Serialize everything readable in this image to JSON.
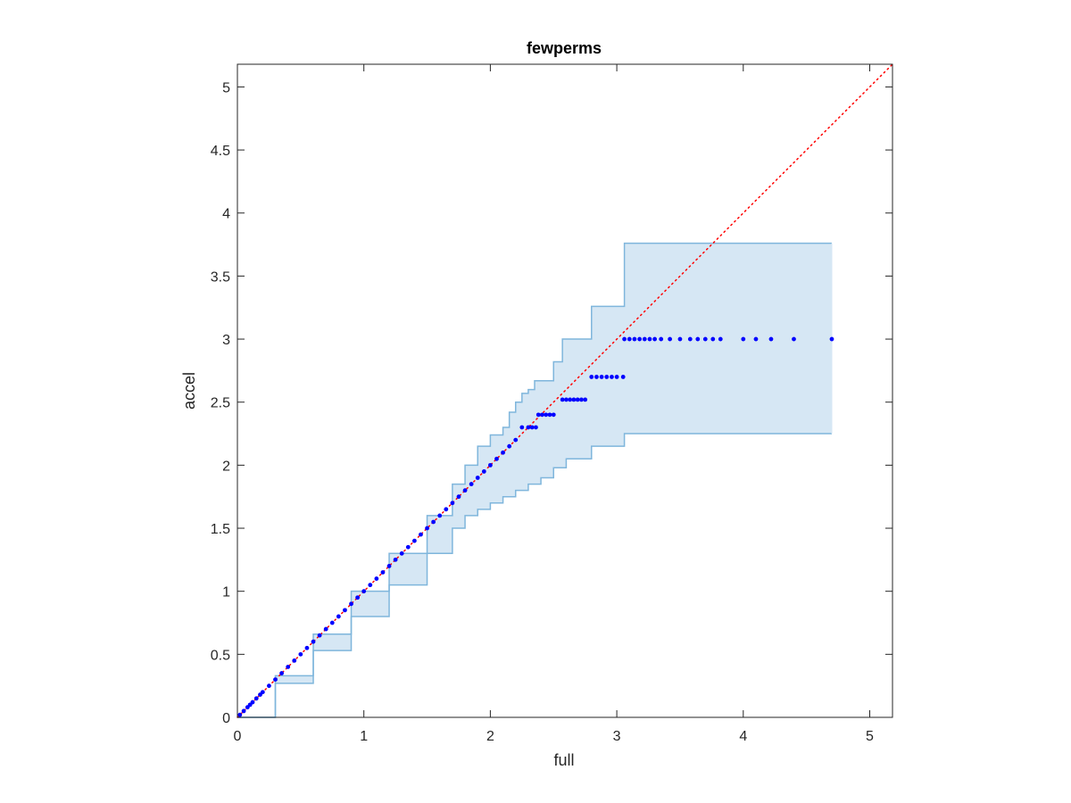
{
  "chart_data": {
    "type": "scatter",
    "title": "fewperms",
    "xlabel": "full",
    "ylabel": "accel",
    "xlim": [
      0,
      5.18
    ],
    "ylim": [
      0,
      5.18
    ],
    "x_ticks": [
      "0",
      "1",
      "2",
      "3",
      "4",
      "5"
    ],
    "y_ticks": [
      "0",
      "0.5",
      "1",
      "1.5",
      "2",
      "2.5",
      "3",
      "3.5",
      "4",
      "4.5",
      "5"
    ],
    "x_tick_values": [
      0,
      1,
      2,
      3,
      4,
      5
    ],
    "y_tick_values": [
      0,
      0.5,
      1,
      1.5,
      2,
      2.5,
      3,
      3.5,
      4,
      4.5,
      5
    ],
    "grid": false,
    "reference_line": {
      "style": "dotted",
      "color": "#ff0000",
      "x": [
        0,
        5.18
      ],
      "y": [
        0,
        5.18
      ]
    },
    "band": {
      "fill": "#d6e7f4",
      "stroke": "#7fb6dc",
      "upper": [
        [
          0,
          0
        ],
        [
          0.3,
          0.33
        ],
        [
          0.6,
          0.66
        ],
        [
          0.9,
          1.0
        ],
        [
          1.2,
          1.3
        ],
        [
          1.5,
          1.6
        ],
        [
          1.7,
          1.85
        ],
        [
          1.8,
          2.0
        ],
        [
          1.9,
          2.15
        ],
        [
          2.0,
          2.24
        ],
        [
          2.1,
          2.3
        ],
        [
          2.15,
          2.42
        ],
        [
          2.2,
          2.5
        ],
        [
          2.25,
          2.57
        ],
        [
          2.3,
          2.6
        ],
        [
          2.35,
          2.67
        ],
        [
          2.5,
          2.82
        ],
        [
          2.57,
          3.0
        ],
        [
          2.8,
          3.26
        ],
        [
          3.06,
          3.76
        ],
        [
          4.7,
          3.76
        ]
      ],
      "lower": [
        [
          0,
          0
        ],
        [
          0.3,
          0.27
        ],
        [
          0.6,
          0.53
        ],
        [
          0.9,
          0.8
        ],
        [
          1.2,
          1.05
        ],
        [
          1.5,
          1.3
        ],
        [
          1.7,
          1.5
        ],
        [
          1.8,
          1.6
        ],
        [
          1.9,
          1.65
        ],
        [
          2.0,
          1.7
        ],
        [
          2.1,
          1.75
        ],
        [
          2.2,
          1.8
        ],
        [
          2.3,
          1.85
        ],
        [
          2.4,
          1.9
        ],
        [
          2.5,
          1.98
        ],
        [
          2.6,
          2.05
        ],
        [
          2.8,
          2.15
        ],
        [
          3.06,
          2.25
        ],
        [
          4.7,
          2.25
        ]
      ]
    },
    "series": [
      {
        "color": "#0000ff",
        "points": [
          [
            0.02,
            0.02
          ],
          [
            0.05,
            0.05
          ],
          [
            0.08,
            0.08
          ],
          [
            0.1,
            0.1
          ],
          [
            0.12,
            0.12
          ],
          [
            0.15,
            0.15
          ],
          [
            0.18,
            0.18
          ],
          [
            0.2,
            0.2
          ],
          [
            0.25,
            0.25
          ],
          [
            0.3,
            0.3
          ],
          [
            0.35,
            0.35
          ],
          [
            0.4,
            0.4
          ],
          [
            0.45,
            0.45
          ],
          [
            0.5,
            0.5
          ],
          [
            0.55,
            0.55
          ],
          [
            0.6,
            0.6
          ],
          [
            0.65,
            0.65
          ],
          [
            0.7,
            0.7
          ],
          [
            0.75,
            0.75
          ],
          [
            0.8,
            0.8
          ],
          [
            0.85,
            0.85
          ],
          [
            0.9,
            0.9
          ],
          [
            0.95,
            0.95
          ],
          [
            1.0,
            1.0
          ],
          [
            1.05,
            1.05
          ],
          [
            1.1,
            1.1
          ],
          [
            1.15,
            1.15
          ],
          [
            1.2,
            1.2
          ],
          [
            1.25,
            1.25
          ],
          [
            1.3,
            1.3
          ],
          [
            1.35,
            1.35
          ],
          [
            1.4,
            1.4
          ],
          [
            1.45,
            1.45
          ],
          [
            1.5,
            1.5
          ],
          [
            1.55,
            1.55
          ],
          [
            1.6,
            1.6
          ],
          [
            1.65,
            1.65
          ],
          [
            1.7,
            1.7
          ],
          [
            1.75,
            1.75
          ],
          [
            1.8,
            1.8
          ],
          [
            1.85,
            1.85
          ],
          [
            1.9,
            1.9
          ],
          [
            1.95,
            1.95
          ],
          [
            2.0,
            2.0
          ],
          [
            2.05,
            2.05
          ],
          [
            2.1,
            2.1
          ],
          [
            2.15,
            2.15
          ],
          [
            2.2,
            2.2
          ],
          [
            2.25,
            2.3
          ],
          [
            2.3,
            2.3
          ],
          [
            2.33,
            2.3
          ],
          [
            2.36,
            2.3
          ],
          [
            2.38,
            2.4
          ],
          [
            2.41,
            2.4
          ],
          [
            2.44,
            2.4
          ],
          [
            2.47,
            2.4
          ],
          [
            2.5,
            2.4
          ],
          [
            2.57,
            2.52
          ],
          [
            2.6,
            2.52
          ],
          [
            2.63,
            2.52
          ],
          [
            2.66,
            2.52
          ],
          [
            2.69,
            2.52
          ],
          [
            2.72,
            2.52
          ],
          [
            2.75,
            2.52
          ],
          [
            2.8,
            2.7
          ],
          [
            2.84,
            2.7
          ],
          [
            2.88,
            2.7
          ],
          [
            2.92,
            2.7
          ],
          [
            2.96,
            2.7
          ],
          [
            3.0,
            2.7
          ],
          [
            3.05,
            2.7
          ],
          [
            3.06,
            3.0
          ],
          [
            3.1,
            3.0
          ],
          [
            3.14,
            3.0
          ],
          [
            3.18,
            3.0
          ],
          [
            3.22,
            3.0
          ],
          [
            3.26,
            3.0
          ],
          [
            3.3,
            3.0
          ],
          [
            3.35,
            3.0
          ],
          [
            3.42,
            3.0
          ],
          [
            3.5,
            3.0
          ],
          [
            3.58,
            3.0
          ],
          [
            3.64,
            3.0
          ],
          [
            3.7,
            3.0
          ],
          [
            3.76,
            3.0
          ],
          [
            3.82,
            3.0
          ],
          [
            4.0,
            3.0
          ],
          [
            4.1,
            3.0
          ],
          [
            4.22,
            3.0
          ],
          [
            4.4,
            3.0
          ],
          [
            4.7,
            3.0
          ]
        ]
      }
    ]
  }
}
